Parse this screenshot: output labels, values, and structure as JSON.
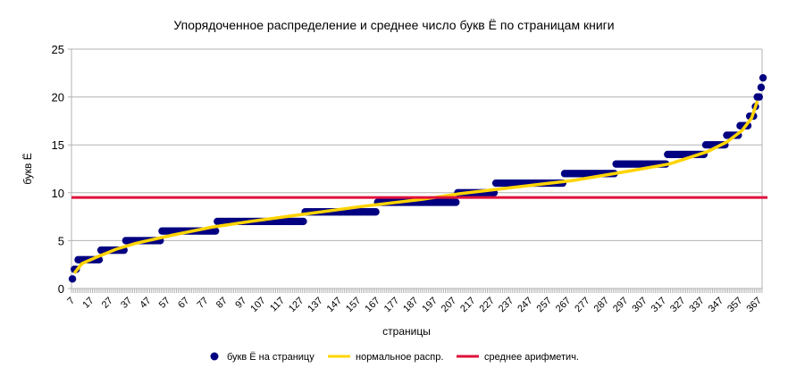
{
  "chart_data": {
    "type": "scatter",
    "title": "Упорядоченное распределение и среднее число букв Ё по страницам книги",
    "xlabel": "страницы",
    "ylabel": "букв Ё",
    "ylim": [
      0,
      25
    ],
    "yticks": [
      0,
      5,
      10,
      15,
      20,
      25
    ],
    "x_start": 7,
    "x_end": 368,
    "xtick_step": 10,
    "grid": true,
    "legend_position": "bottom",
    "series": [
      {
        "name": "букв Ё на страницу",
        "color": "#000080",
        "type": "scatter",
        "runs": [
          {
            "value": 1,
            "count": 1
          },
          {
            "value": 2,
            "count": 2
          },
          {
            "value": 3,
            "count": 12
          },
          {
            "value": 4,
            "count": 13
          },
          {
            "value": 5,
            "count": 19
          },
          {
            "value": 6,
            "count": 29
          },
          {
            "value": 7,
            "count": 46
          },
          {
            "value": 8,
            "count": 38
          },
          {
            "value": 9,
            "count": 42
          },
          {
            "value": 10,
            "count": 20
          },
          {
            "value": 11,
            "count": 36
          },
          {
            "value": 12,
            "count": 27
          },
          {
            "value": 13,
            "count": 27
          },
          {
            "value": 14,
            "count": 20
          },
          {
            "value": 15,
            "count": 11
          },
          {
            "value": 16,
            "count": 7
          },
          {
            "value": 17,
            "count": 5
          },
          {
            "value": 18,
            "count": 3
          },
          {
            "value": 19,
            "count": 1
          },
          {
            "value": 20,
            "count": 2
          },
          {
            "value": 21,
            "count": 1
          },
          {
            "value": 22,
            "count": 1
          }
        ]
      },
      {
        "name": "нормальное распр.",
        "color": "#FFD400",
        "type": "line",
        "points": [
          [
            8,
            1.6
          ],
          [
            12,
            2.6
          ],
          [
            20,
            3.3
          ],
          [
            30,
            4.1
          ],
          [
            40,
            4.7
          ],
          [
            60,
            5.6
          ],
          [
            80,
            6.4
          ],
          [
            100,
            7.0
          ],
          [
            130,
            7.8
          ],
          [
            160,
            8.6
          ],
          [
            190,
            9.3
          ],
          [
            210,
            9.9
          ],
          [
            240,
            10.6
          ],
          [
            270,
            11.3
          ],
          [
            300,
            12.3
          ],
          [
            320,
            13.0
          ],
          [
            340,
            14.3
          ],
          [
            350,
            15.3
          ],
          [
            358,
            16.5
          ],
          [
            363,
            17.8
          ],
          [
            366,
            19.6
          ]
        ]
      },
      {
        "name": "среднее арифметич.",
        "color": "#E0103A",
        "type": "hline",
        "value": 9.5
      }
    ]
  }
}
